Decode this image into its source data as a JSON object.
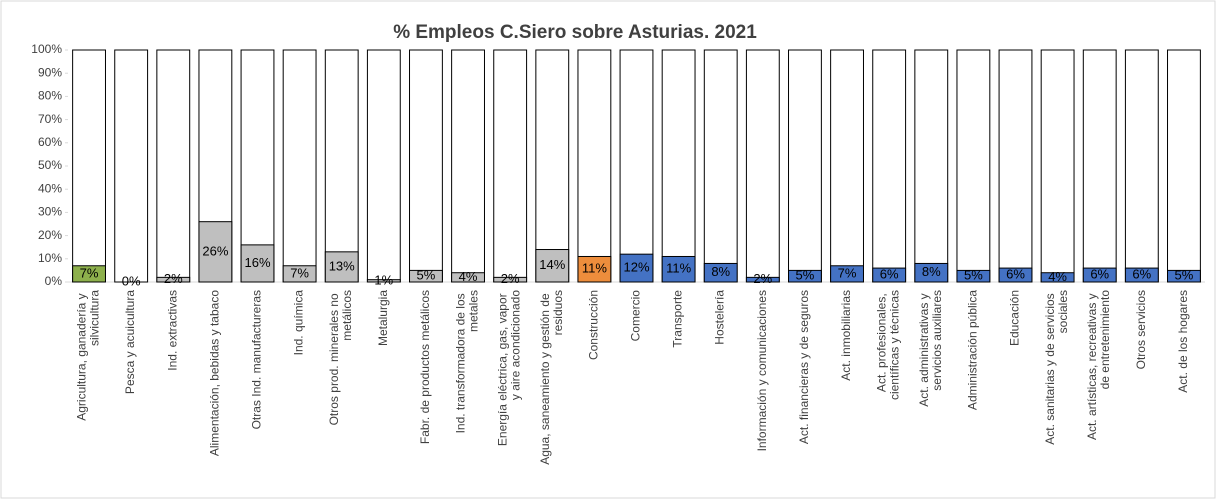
{
  "chart_data": {
    "type": "bar",
    "title": "% Empleos C.Siero sobre Asturias. 2021",
    "categories": [
      "Agricultura, ganadería y silvicultura",
      "Pesca y acuicultura",
      "Ind. extractivas",
      "Alimentación, bebidas y tabaco",
      "Otras Ind. manufactureras",
      "Ind. química",
      "Otros prod. minerales no metálicos",
      "Metalurgia",
      "Fabr. de productos metálicos",
      "Ind. transformadora de los metales",
      "Energía eléctrica, gas, vapor y aire acondicionado",
      "Agua, saneamiento y gestión de residuos",
      "Construcción",
      "Comercio",
      "Transporte",
      "Hostelería",
      "Información y comunicaciones",
      "Act. financieras y de seguros",
      "Act. inmobiliarias",
      "Act. profesionales, científicas y técnicas",
      "Act. administrativas y servicios auxiliares",
      "Administración pública",
      "Educación",
      "Act. sanitarias y de servicios sociales",
      "Act. artísticas, recreativas y de entretenimiento",
      "Otros servicios",
      "Act. de los hogares"
    ],
    "values": [
      7,
      0,
      2,
      26,
      16,
      7,
      13,
      1,
      5,
      4,
      2,
      14,
      11,
      12,
      11,
      8,
      2,
      5,
      7,
      6,
      8,
      5,
      6,
      4,
      6,
      6,
      5
    ],
    "value_labels": [
      "7%",
      "0%",
      "2%",
      "26%",
      "16%",
      "7%",
      "13%",
      "1%",
      "5%",
      "4%",
      "2%",
      "14%",
      "11%",
      "12%",
      "11%",
      "8%",
      "2%",
      "5%",
      "7%",
      "6%",
      "8%",
      "5%",
      "6%",
      "4%",
      "6%",
      "6%",
      "5%"
    ],
    "colors": [
      "#8db04c",
      "#bfbfbf",
      "#bfbfbf",
      "#bfbfbf",
      "#bfbfbf",
      "#bfbfbf",
      "#bfbfbf",
      "#bfbfbf",
      "#bfbfbf",
      "#bfbfbf",
      "#bfbfbf",
      "#bfbfbf",
      "#ed8d3c",
      "#4472c4",
      "#4472c4",
      "#4472c4",
      "#4472c4",
      "#4472c4",
      "#4472c4",
      "#4472c4",
      "#4472c4",
      "#4472c4",
      "#4472c4",
      "#4472c4",
      "#4472c4",
      "#4472c4",
      "#4472c4"
    ],
    "ylim": [
      0,
      100
    ],
    "yticks": [
      {
        "value": 0,
        "label": "0%"
      },
      {
        "value": 10,
        "label": "10%"
      },
      {
        "value": 20,
        "label": "20%"
      },
      {
        "value": 30,
        "label": "30%"
      },
      {
        "value": 40,
        "label": "40%"
      },
      {
        "value": 50,
        "label": "50%"
      },
      {
        "value": 60,
        "label": "60%"
      },
      {
        "value": 70,
        "label": "70%"
      },
      {
        "value": 80,
        "label": "80%"
      },
      {
        "value": 90,
        "label": "90%"
      },
      {
        "value": 100,
        "label": "100%"
      }
    ],
    "grid": false
  }
}
